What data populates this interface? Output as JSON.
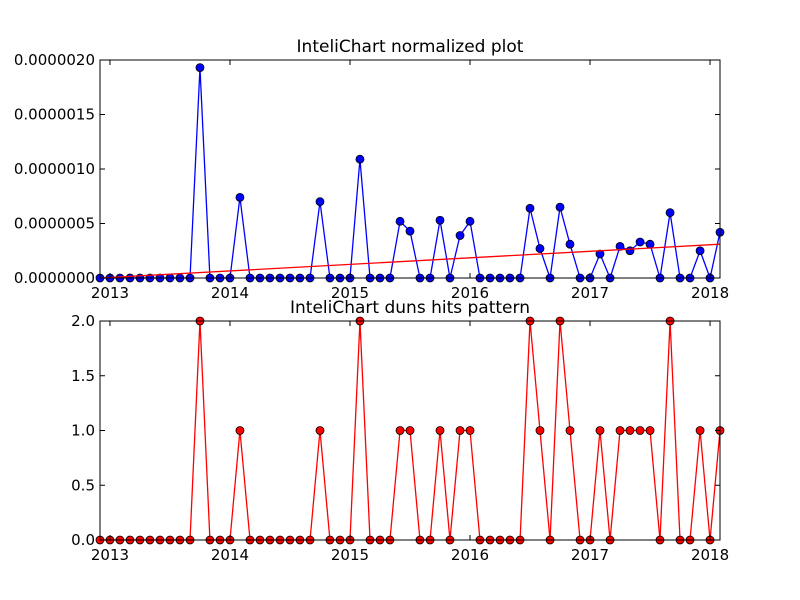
{
  "chart_data": [
    {
      "type": "line",
      "title": "InteliChart normalized plot",
      "x": [
        2012.917,
        2013.0,
        2013.083,
        2013.167,
        2013.25,
        2013.333,
        2013.417,
        2013.5,
        2013.583,
        2013.667,
        2013.75,
        2013.833,
        2013.917,
        2014.0,
        2014.083,
        2014.167,
        2014.25,
        2014.333,
        2014.417,
        2014.5,
        2014.583,
        2014.667,
        2014.75,
        2014.833,
        2014.917,
        2015.0,
        2015.083,
        2015.167,
        2015.25,
        2015.333,
        2015.417,
        2015.5,
        2015.583,
        2015.667,
        2015.75,
        2015.833,
        2015.917,
        2016.0,
        2016.083,
        2016.167,
        2016.25,
        2016.333,
        2016.417,
        2016.5,
        2016.583,
        2016.667,
        2016.75,
        2016.833,
        2016.917,
        2017.0,
        2017.083,
        2017.167,
        2017.25,
        2017.333,
        2017.417,
        2017.5,
        2017.583,
        2017.667,
        2017.75,
        2017.833,
        2017.917,
        2018.0,
        2018.083
      ],
      "series": [
        {
          "color": "#0000ff",
          "marker": true,
          "values": [
            0,
            0,
            0,
            0,
            0,
            0,
            0,
            0,
            0,
            0,
            1.93e-06,
            0,
            0,
            0,
            7.4e-07,
            0,
            0,
            0,
            0,
            0,
            0,
            0,
            7e-07,
            0,
            0,
            0,
            1.09e-06,
            0,
            0,
            0,
            5.2e-07,
            4.3e-07,
            0,
            0,
            5.3e-07,
            0,
            3.9e-07,
            5.2e-07,
            0,
            0,
            0,
            0,
            0,
            6.4e-07,
            2.7e-07,
            0,
            6.5e-07,
            3.1e-07,
            0,
            0,
            2.2e-07,
            0,
            2.9e-07,
            2.5e-07,
            3.3e-07,
            3.1e-07,
            0,
            6e-07,
            0,
            0,
            2.5e-07,
            0,
            4.2e-07
          ]
        },
        {
          "color": "#ff0000",
          "marker": false,
          "x": [
            2012.917,
            2018.083
          ],
          "values": [
            0,
            3.1e-07
          ]
        }
      ],
      "xlim": [
        2012.917,
        2018.083
      ],
      "xticks": [
        2013,
        2014,
        2015,
        2016,
        2017,
        2018
      ],
      "ylim": [
        0,
        2e-06
      ],
      "yticks": [
        {
          "value": 0,
          "label": "0.0000000"
        },
        {
          "value": 5e-07,
          "label": "0.0000005"
        },
        {
          "value": 1e-06,
          "label": "0.0000010"
        },
        {
          "value": 1.5e-06,
          "label": "0.0000015"
        },
        {
          "value": 2e-06,
          "label": "0.0000020"
        }
      ]
    },
    {
      "type": "line",
      "title": "InteliChart duns hits pattern",
      "x": [
        2012.917,
        2013.0,
        2013.083,
        2013.167,
        2013.25,
        2013.333,
        2013.417,
        2013.5,
        2013.583,
        2013.667,
        2013.75,
        2013.833,
        2013.917,
        2014.0,
        2014.083,
        2014.167,
        2014.25,
        2014.333,
        2014.417,
        2014.5,
        2014.583,
        2014.667,
        2014.75,
        2014.833,
        2014.917,
        2015.0,
        2015.083,
        2015.167,
        2015.25,
        2015.333,
        2015.417,
        2015.5,
        2015.583,
        2015.667,
        2015.75,
        2015.833,
        2015.917,
        2016.0,
        2016.083,
        2016.167,
        2016.25,
        2016.333,
        2016.417,
        2016.5,
        2016.583,
        2016.667,
        2016.75,
        2016.833,
        2016.917,
        2017.0,
        2017.083,
        2017.167,
        2017.25,
        2017.333,
        2017.417,
        2017.5,
        2017.583,
        2017.667,
        2017.75,
        2017.833,
        2017.917,
        2018.0,
        2018.083
      ],
      "series": [
        {
          "color": "#ff0000",
          "marker": true,
          "values": [
            0,
            0,
            0,
            0,
            0,
            0,
            0,
            0,
            0,
            0,
            2,
            0,
            0,
            0,
            1,
            0,
            0,
            0,
            0,
            0,
            0,
            0,
            1,
            0,
            0,
            0,
            2,
            0,
            0,
            0,
            1,
            1,
            0,
            0,
            1,
            0,
            1,
            1,
            0,
            0,
            0,
            0,
            0,
            2,
            1,
            0,
            2,
            1,
            0,
            0,
            1,
            0,
            1,
            1,
            1,
            1,
            0,
            2,
            0,
            0,
            1,
            0,
            1
          ]
        }
      ],
      "xlim": [
        2012.917,
        2018.083
      ],
      "xticks": [
        2013,
        2014,
        2015,
        2016,
        2017,
        2018
      ],
      "ylim": [
        0,
        2
      ],
      "yticks": [
        {
          "value": 0,
          "label": "0.0"
        },
        0.5,
        {
          "value": 1,
          "label": "1.0"
        },
        1.5,
        {
          "value": 2,
          "label": "2.0"
        }
      ]
    }
  ]
}
